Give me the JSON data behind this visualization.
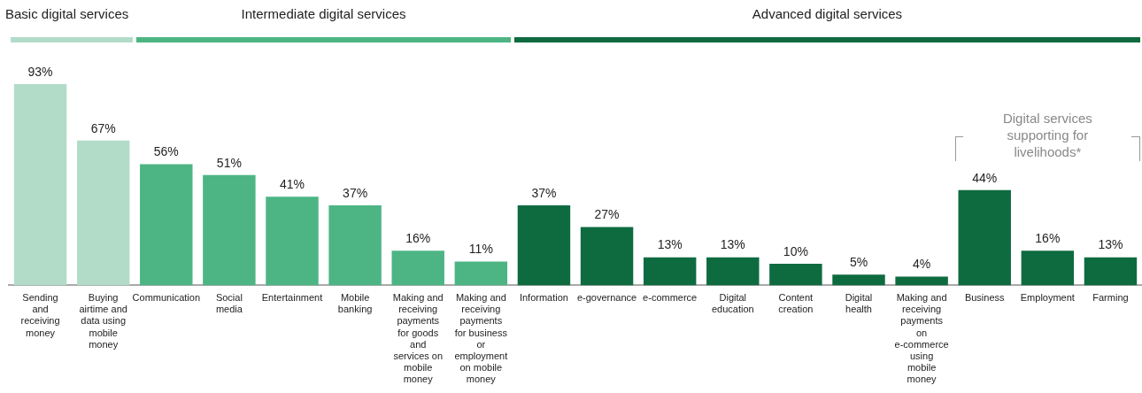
{
  "chart_data": {
    "type": "bar",
    "categories": [
      "Sending and receiving money",
      "Buying airtime and data using mobile money",
      "Communication",
      "Social media",
      "Entertainment",
      "Mobile banking",
      "Making and receiving payments for goods and services on mobile money",
      "Making and receiving payments for business or employment on mobile money",
      "Information",
      "e-governance",
      "e-commerce",
      "Digital education",
      "Content creation",
      "Digital health",
      "Making and receiving payments on e-commerce using mobile money",
      "Business",
      "Employment",
      "Farming"
    ],
    "values": [
      93,
      67,
      56,
      51,
      41,
      37,
      16,
      11,
      37,
      27,
      13,
      13,
      10,
      5,
      4,
      44,
      16,
      13
    ],
    "value_labels": [
      "93%",
      "67%",
      "56%",
      "51%",
      "41%",
      "37%",
      "16%",
      "11%",
      "37%",
      "27%",
      "13%",
      "13%",
      "10%",
      "5%",
      "4%",
      "44%",
      "16%",
      "13%"
    ],
    "colors": [
      "#b2dcc8",
      "#b2dcc8",
      "#4db584",
      "#4db584",
      "#4db584",
      "#4db584",
      "#4db584",
      "#4db584",
      "#0e6b40",
      "#0e6b40",
      "#0e6b40",
      "#0e6b40",
      "#0e6b40",
      "#0e6b40",
      "#0e6b40",
      "#0e6b40",
      "#0e6b40",
      "#0e6b40"
    ],
    "grid": false,
    "legend": false,
    "annotations": [
      "Basic digital services",
      "Intermediate digital services",
      "Advanced digital services",
      "Digital services supporting for livelihoods*"
    ]
  }
}
